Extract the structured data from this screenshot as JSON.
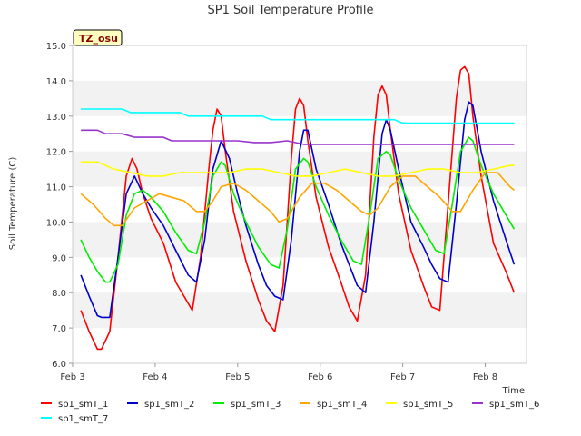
{
  "chart_data": {
    "type": "line",
    "title": "SP1 Soil Temperature Profile",
    "xlabel": "Time",
    "ylabel": "Soil Temperature (C)",
    "badge": "TZ_osu",
    "xlim": [
      3.0,
      8.5
    ],
    "ylim": [
      6.0,
      15.0
    ],
    "grid": "alternating horizontal bands",
    "legend_position": "bottom",
    "x_tick_labels": [
      "Feb 3",
      "Feb 4",
      "Feb 5",
      "Feb 6",
      "Feb 7",
      "Feb 8"
    ],
    "x_tick_values": [
      3,
      4,
      5,
      6,
      7,
      8
    ],
    "y_tick_labels": [
      "6.0",
      "7.0",
      "8.0",
      "9.0",
      "10.0",
      "11.0",
      "12.0",
      "13.0",
      "14.0",
      "15.0"
    ],
    "y_tick_values": [
      6,
      7,
      8,
      9,
      10,
      11,
      12,
      13,
      14,
      15
    ],
    "x_unit": "day of February",
    "series": [
      {
        "name": "sp1_smT_1",
        "color": "#ff0000",
        "x": [
          3.1,
          3.2,
          3.3,
          3.35,
          3.45,
          3.55,
          3.65,
          3.72,
          3.78,
          3.85,
          3.95,
          4.1,
          4.25,
          4.35,
          4.45,
          4.55,
          4.65,
          4.7,
          4.75,
          4.8,
          4.85,
          4.95,
          5.1,
          5.25,
          5.35,
          5.45,
          5.55,
          5.65,
          5.7,
          5.75,
          5.8,
          5.85,
          5.95,
          6.1,
          6.25,
          6.35,
          6.45,
          6.55,
          6.65,
          6.7,
          6.75,
          6.8,
          6.85,
          6.95,
          7.1,
          7.25,
          7.35,
          7.45,
          7.55,
          7.65,
          7.7,
          7.75,
          7.8,
          7.85,
          7.95,
          8.1,
          8.25,
          8.35
        ],
        "y": [
          7.5,
          6.9,
          6.4,
          6.4,
          6.9,
          9.0,
          11.3,
          11.8,
          11.5,
          10.8,
          10.1,
          9.4,
          8.3,
          7.9,
          7.5,
          9.0,
          11.5,
          12.6,
          13.2,
          13.0,
          12.0,
          10.3,
          8.9,
          7.8,
          7.2,
          6.9,
          8.2,
          11.8,
          13.2,
          13.5,
          13.3,
          12.3,
          10.7,
          9.3,
          8.3,
          7.6,
          7.2,
          8.5,
          12.4,
          13.6,
          13.85,
          13.6,
          12.6,
          10.8,
          9.2,
          8.2,
          7.6,
          7.5,
          10.5,
          13.5,
          14.3,
          14.4,
          14.2,
          13.0,
          11.3,
          9.4,
          8.6,
          8.0
        ]
      },
      {
        "name": "sp1_smT_2",
        "color": "#0000cc",
        "x": [
          3.1,
          3.2,
          3.3,
          3.35,
          3.45,
          3.55,
          3.65,
          3.75,
          3.85,
          3.95,
          4.1,
          4.25,
          4.4,
          4.5,
          4.6,
          4.7,
          4.8,
          4.9,
          5.0,
          5.1,
          5.25,
          5.35,
          5.45,
          5.55,
          5.65,
          5.75,
          5.8,
          5.85,
          5.95,
          6.1,
          6.25,
          6.35,
          6.45,
          6.55,
          6.65,
          6.75,
          6.8,
          6.85,
          6.95,
          7.1,
          7.25,
          7.35,
          7.45,
          7.55,
          7.65,
          7.75,
          7.8,
          7.85,
          7.95,
          8.1,
          8.25,
          8.35
        ],
        "y": [
          8.5,
          7.9,
          7.35,
          7.3,
          7.3,
          9.0,
          10.8,
          11.3,
          10.8,
          10.4,
          9.9,
          9.2,
          8.5,
          8.3,
          9.5,
          11.5,
          12.3,
          11.8,
          10.8,
          9.9,
          8.8,
          8.2,
          7.9,
          7.8,
          9.5,
          12.0,
          12.6,
          12.6,
          11.5,
          10.5,
          9.4,
          8.8,
          8.2,
          8.0,
          10.0,
          12.5,
          12.9,
          12.6,
          11.5,
          10.0,
          9.3,
          8.8,
          8.4,
          8.3,
          10.5,
          12.9,
          13.4,
          13.3,
          12.0,
          10.6,
          9.5,
          8.8
        ]
      },
      {
        "name": "sp1_smT_3",
        "color": "#00ee00",
        "x": [
          3.1,
          3.2,
          3.3,
          3.4,
          3.45,
          3.55,
          3.65,
          3.75,
          3.85,
          3.95,
          4.1,
          4.25,
          4.4,
          4.5,
          4.6,
          4.7,
          4.8,
          4.85,
          4.95,
          5.1,
          5.25,
          5.4,
          5.5,
          5.6,
          5.7,
          5.8,
          5.85,
          5.95,
          6.1,
          6.25,
          6.4,
          6.5,
          6.6,
          6.7,
          6.8,
          6.85,
          6.95,
          7.1,
          7.25,
          7.4,
          7.5,
          7.6,
          7.7,
          7.8,
          7.85,
          7.95,
          8.1,
          8.25,
          8.35
        ],
        "y": [
          9.5,
          9.0,
          8.6,
          8.3,
          8.3,
          8.8,
          10.2,
          10.8,
          10.9,
          10.7,
          10.3,
          9.7,
          9.2,
          9.1,
          10.0,
          11.3,
          11.7,
          11.6,
          10.8,
          10.0,
          9.3,
          8.8,
          8.7,
          9.8,
          11.5,
          11.8,
          11.7,
          11.0,
          10.2,
          9.5,
          8.9,
          8.8,
          10.2,
          11.8,
          12.0,
          11.9,
          11.2,
          10.4,
          9.8,
          9.2,
          9.1,
          10.5,
          12.0,
          12.4,
          12.3,
          11.6,
          10.8,
          10.2,
          9.8
        ]
      },
      {
        "name": "sp1_smT_4",
        "color": "#ffa500",
        "x": [
          3.1,
          3.25,
          3.4,
          3.5,
          3.6,
          3.75,
          3.9,
          4.05,
          4.2,
          4.35,
          4.5,
          4.6,
          4.7,
          4.8,
          4.95,
          5.1,
          5.25,
          5.4,
          5.5,
          5.6,
          5.75,
          5.9,
          6.05,
          6.2,
          6.35,
          6.5,
          6.6,
          6.7,
          6.85,
          7.0,
          7.15,
          7.3,
          7.45,
          7.6,
          7.7,
          7.85,
          8.0,
          8.15,
          8.3,
          8.35
        ],
        "y": [
          10.8,
          10.5,
          10.1,
          9.9,
          9.9,
          10.4,
          10.6,
          10.8,
          10.7,
          10.6,
          10.3,
          10.3,
          10.6,
          11.0,
          11.1,
          10.9,
          10.6,
          10.3,
          10.0,
          10.1,
          10.7,
          11.1,
          11.1,
          10.9,
          10.6,
          10.3,
          10.2,
          10.4,
          11.0,
          11.3,
          11.3,
          11.0,
          10.7,
          10.3,
          10.3,
          10.9,
          11.4,
          11.4,
          11.0,
          10.9
        ]
      },
      {
        "name": "sp1_smT_5",
        "color": "#ffff00",
        "x": [
          3.1,
          3.3,
          3.5,
          3.7,
          3.9,
          4.1,
          4.3,
          4.5,
          4.7,
          4.9,
          5.1,
          5.3,
          5.5,
          5.7,
          5.9,
          6.1,
          6.3,
          6.5,
          6.7,
          6.9,
          7.1,
          7.3,
          7.5,
          7.7,
          7.9,
          8.1,
          8.3,
          8.35
        ],
        "y": [
          11.7,
          11.7,
          11.5,
          11.4,
          11.3,
          11.3,
          11.4,
          11.4,
          11.4,
          11.4,
          11.5,
          11.5,
          11.4,
          11.3,
          11.3,
          11.4,
          11.5,
          11.4,
          11.3,
          11.3,
          11.4,
          11.5,
          11.5,
          11.4,
          11.4,
          11.5,
          11.6,
          11.6
        ]
      },
      {
        "name": "sp1_smT_6",
        "color": "#9933cc",
        "x": [
          3.1,
          3.3,
          3.4,
          3.6,
          3.75,
          3.9,
          4.1,
          4.2,
          4.4,
          4.6,
          4.8,
          5.0,
          5.2,
          5.4,
          5.6,
          5.8,
          6.0,
          6.2,
          6.4,
          6.6,
          6.8,
          7.0,
          7.2,
          7.4,
          7.6,
          7.8,
          8.0,
          8.2,
          8.35
        ],
        "y": [
          12.6,
          12.6,
          12.5,
          12.5,
          12.4,
          12.4,
          12.4,
          12.3,
          12.3,
          12.3,
          12.3,
          12.3,
          12.25,
          12.25,
          12.3,
          12.2,
          12.2,
          12.2,
          12.2,
          12.2,
          12.2,
          12.2,
          12.2,
          12.2,
          12.2,
          12.2,
          12.2,
          12.2,
          12.2
        ]
      },
      {
        "name": "sp1_smT_7",
        "color": "#00ffff",
        "x": [
          3.1,
          3.3,
          3.6,
          3.7,
          4.0,
          4.3,
          4.4,
          4.7,
          5.0,
          5.3,
          5.4,
          5.7,
          6.0,
          6.4,
          6.9,
          7.0,
          7.4,
          7.7,
          8.0,
          8.35
        ],
        "y": [
          13.2,
          13.2,
          13.2,
          13.1,
          13.1,
          13.1,
          13.0,
          13.0,
          13.0,
          13.0,
          12.9,
          12.9,
          12.9,
          12.9,
          12.9,
          12.8,
          12.8,
          12.8,
          12.8,
          12.8
        ]
      }
    ]
  }
}
